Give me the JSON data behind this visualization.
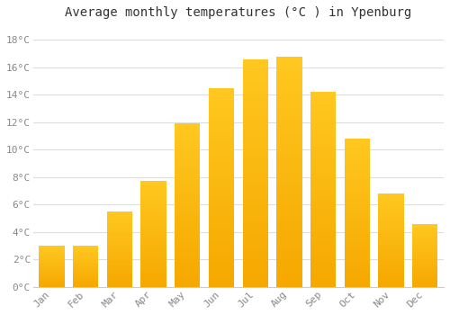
{
  "months": [
    "Jan",
    "Feb",
    "Mar",
    "Apr",
    "May",
    "Jun",
    "Jul",
    "Aug",
    "Sep",
    "Oct",
    "Nov",
    "Dec"
  ],
  "values": [
    3.0,
    3.0,
    5.5,
    7.7,
    11.9,
    14.5,
    16.6,
    16.8,
    14.2,
    10.8,
    6.8,
    4.6
  ],
  "bar_color": "#FFC020",
  "bar_color_dark": "#F5A800",
  "title": "Average monthly temperatures (°C ) in Ypenburg",
  "ylim": [
    0,
    19
  ],
  "ytick_step": 2,
  "background_color": "#ffffff",
  "grid_color": "#dddddd",
  "title_fontsize": 10,
  "tick_fontsize": 8,
  "font_family": "monospace"
}
